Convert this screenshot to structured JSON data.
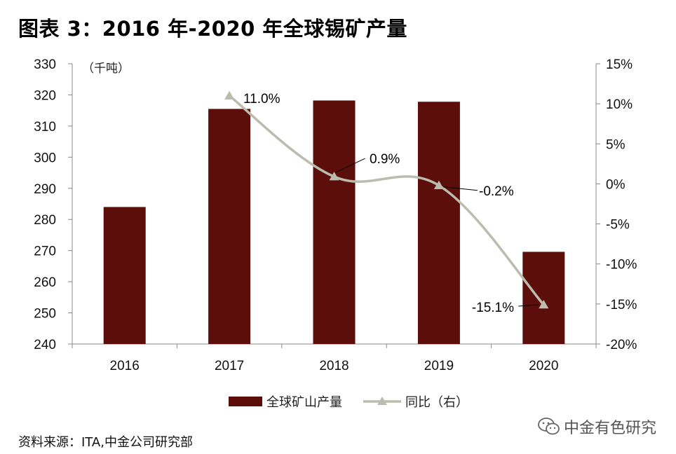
{
  "title": "图表 3：2016 年-2020 年全球锡矿产量",
  "source": "资料来源：ITA,中金公司研究部",
  "watermark": "中金有色研究",
  "chart_data": {
    "type": "bar",
    "categories": [
      "2016",
      "2017",
      "2018",
      "2019",
      "2020"
    ],
    "y_unit_label": "（千吨）",
    "y_left": {
      "min": 240,
      "max": 330,
      "step": 10
    },
    "y_right": {
      "min": -20,
      "max": 15,
      "step": 5,
      "suffix": "%"
    },
    "grid": false,
    "legend_position": "bottom",
    "series": [
      {
        "name": "全球矿山产量",
        "kind": "bar",
        "axis": "left",
        "color": "#5c0f0a",
        "values": [
          284.0,
          315.5,
          318.2,
          317.8,
          269.6
        ]
      },
      {
        "name": "同比（右）",
        "kind": "line",
        "axis": "right",
        "color": "#bcbcae",
        "values": [
          null,
          11.0,
          0.9,
          -0.2,
          -15.1
        ],
        "labels": [
          "",
          "11.0%",
          "0.9%",
          "-0.2%",
          "-15.1%"
        ]
      }
    ]
  }
}
